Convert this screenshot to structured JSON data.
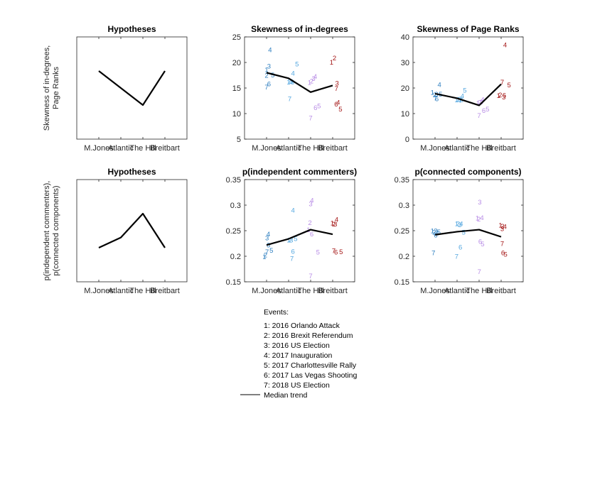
{
  "chart_data": [
    {
      "type": "line",
      "title": "Hypotheses",
      "ylabel": [
        "Skewness of in-degrees,",
        "Page Ranks"
      ],
      "categories": [
        "M.Jones",
        "Atlantic",
        "The Hill",
        "Breitbart"
      ],
      "ylim": [
        0,
        6
      ],
      "yticks": [],
      "median": [
        4,
        3,
        2,
        4
      ],
      "points": []
    },
    {
      "type": "scatter",
      "title": "Skewness of in-degrees",
      "ylabel": [],
      "categories": [
        "M.Jones",
        "Atlantic",
        "The Hill",
        "Breitbart"
      ],
      "ylim": [
        5,
        25
      ],
      "yticks": [
        "5",
        "10",
        "15",
        "20",
        "25"
      ],
      "median": [
        18.0,
        16.9,
        14.2,
        15.5
      ],
      "points": [
        {
          "cat": 1,
          "dx": 0.0,
          "y": 18.6,
          "label": "1"
        },
        {
          "cat": 1,
          "dx": 0.0,
          "y": 17.5,
          "label": "2"
        },
        {
          "cat": 1,
          "dx": 0.11,
          "y": 19.3,
          "label": "3"
        },
        {
          "cat": 1,
          "dx": 0.16,
          "y": 22.5,
          "label": "4"
        },
        {
          "cat": 1,
          "dx": 0.28,
          "y": 17.6,
          "label": "5"
        },
        {
          "cat": 1,
          "dx": 0.11,
          "y": 15.8,
          "label": "6"
        },
        {
          "cat": 1,
          "dx": 0.0,
          "y": 15.2,
          "label": "7"
        },
        {
          "cat": 2,
          "dx": 0.0,
          "y": 16.2,
          "label": "1"
        },
        {
          "cat": 2,
          "dx": 0.05,
          "y": 16.4,
          "label": "2"
        },
        {
          "cat": 2,
          "dx": 0.12,
          "y": 16.3,
          "label": "3"
        },
        {
          "cat": 2,
          "dx": 0.2,
          "y": 17.9,
          "label": "4"
        },
        {
          "cat": 2,
          "dx": 0.38,
          "y": 19.7,
          "label": "5"
        },
        {
          "cat": 2,
          "dx": 0.18,
          "y": 16.2,
          "label": "6"
        },
        {
          "cat": 2,
          "dx": 0.05,
          "y": 12.9,
          "label": "7"
        },
        {
          "cat": 3,
          "dx": -0.05,
          "y": 16.1,
          "label": "1"
        },
        {
          "cat": 3,
          "dx": 0.05,
          "y": 16.4,
          "label": "2"
        },
        {
          "cat": 3,
          "dx": 0.13,
          "y": 16.9,
          "label": "3"
        },
        {
          "cat": 3,
          "dx": 0.21,
          "y": 17.3,
          "label": "4"
        },
        {
          "cat": 3,
          "dx": 0.38,
          "y": 11.5,
          "label": "5"
        },
        {
          "cat": 3,
          "dx": 0.22,
          "y": 11.2,
          "label": "6"
        },
        {
          "cat": 3,
          "dx": 0.0,
          "y": 9.2,
          "label": "7"
        },
        {
          "cat": 4,
          "dx": -0.05,
          "y": 20.1,
          "label": "1"
        },
        {
          "cat": 4,
          "dx": 0.08,
          "y": 20.9,
          "label": "2"
        },
        {
          "cat": 4,
          "dx": 0.2,
          "y": 16.0,
          "label": "3"
        },
        {
          "cat": 4,
          "dx": 0.25,
          "y": 12.2,
          "label": "4"
        },
        {
          "cat": 4,
          "dx": 0.35,
          "y": 10.9,
          "label": "5"
        },
        {
          "cat": 4,
          "dx": 0.16,
          "y": 11.9,
          "label": "6"
        },
        {
          "cat": 4,
          "dx": 0.17,
          "y": 14.9,
          "label": "7"
        }
      ]
    },
    {
      "type": "scatter",
      "title": "Skewness of Page Ranks",
      "ylabel": [],
      "categories": [
        "M.Jones",
        "Atlantic",
        "The Hill",
        "Breitbart"
      ],
      "ylim": [
        0,
        40
      ],
      "yticks": [
        "0",
        "10",
        "20",
        "30",
        "40"
      ],
      "median": [
        17.8,
        16.0,
        13.2,
        21.5
      ],
      "points": [
        {
          "cat": 1,
          "dx": -0.12,
          "y": 18.4,
          "label": "1"
        },
        {
          "cat": 1,
          "dx": -0.02,
          "y": 17.4,
          "label": "2"
        },
        {
          "cat": 1,
          "dx": 0.06,
          "y": 17.6,
          "label": "3"
        },
        {
          "cat": 1,
          "dx": 0.2,
          "y": 21.4,
          "label": "4"
        },
        {
          "cat": 1,
          "dx": 0.25,
          "y": 17.7,
          "label": "5"
        },
        {
          "cat": 1,
          "dx": 0.08,
          "y": 15.9,
          "label": "6"
        },
        {
          "cat": 1,
          "dx": 0.02,
          "y": 16.1,
          "label": "7"
        },
        {
          "cat": 2,
          "dx": -0.03,
          "y": 15.4,
          "label": "1"
        },
        {
          "cat": 2,
          "dx": 0.05,
          "y": 15.6,
          "label": "2"
        },
        {
          "cat": 2,
          "dx": 0.12,
          "y": 15.7,
          "label": "3"
        },
        {
          "cat": 2,
          "dx": 0.24,
          "y": 16.9,
          "label": "4"
        },
        {
          "cat": 2,
          "dx": 0.35,
          "y": 19.1,
          "label": "5"
        },
        {
          "cat": 2,
          "dx": 0.2,
          "y": 15.4,
          "label": "6"
        },
        {
          "cat": 2,
          "dx": 0.15,
          "y": 15.2,
          "label": "7"
        },
        {
          "cat": 3,
          "dx": -0.05,
          "y": 14.2,
          "label": "1"
        },
        {
          "cat": 3,
          "dx": 0.03,
          "y": 14.4,
          "label": "2"
        },
        {
          "cat": 3,
          "dx": 0.1,
          "y": 14.6,
          "label": "3"
        },
        {
          "cat": 3,
          "dx": 0.16,
          "y": 15.6,
          "label": "4"
        },
        {
          "cat": 3,
          "dx": 0.38,
          "y": 11.8,
          "label": "5"
        },
        {
          "cat": 3,
          "dx": 0.21,
          "y": 11.2,
          "label": "6"
        },
        {
          "cat": 3,
          "dx": 0.0,
          "y": 9.3,
          "label": "7"
        },
        {
          "cat": 4,
          "dx": -0.12,
          "y": 17.1,
          "label": "1"
        },
        {
          "cat": 4,
          "dx": -0.04,
          "y": 17.3,
          "label": "2"
        },
        {
          "cat": 4,
          "dx": 0.12,
          "y": 16.5,
          "label": "3"
        },
        {
          "cat": 4,
          "dx": 0.18,
          "y": 36.9,
          "label": "4"
        },
        {
          "cat": 4,
          "dx": 0.36,
          "y": 21.3,
          "label": "5"
        },
        {
          "cat": 4,
          "dx": 0.14,
          "y": 17.2,
          "label": "6"
        },
        {
          "cat": 4,
          "dx": 0.05,
          "y": 22.4,
          "label": "7"
        }
      ]
    },
    {
      "type": "line",
      "title": "Hypotheses",
      "ylabel": [
        "p(independent commenters),",
        "p(connected components)"
      ],
      "categories": [
        "M.Jones",
        "Atlantic",
        "The Hill",
        "Breitbart"
      ],
      "ylim": [
        0,
        6
      ],
      "yticks": [],
      "median": [
        2,
        2.6,
        4,
        2
      ],
      "points": []
    },
    {
      "type": "scatter",
      "title": "p(independent commenters)",
      "ylabel": [],
      "categories": [
        "M.Jones",
        "Atlantic",
        "The Hill",
        "Breitbart"
      ],
      "ylim": [
        0.15,
        0.35
      ],
      "yticks": [
        "0.15",
        "0.2",
        "0.25",
        "0.3",
        "0.35"
      ],
      "median": [
        0.222,
        0.234,
        0.252,
        0.243
      ],
      "points": [
        {
          "cat": 1,
          "dx": -0.1,
          "y": 0.199,
          "label": "1"
        },
        {
          "cat": 1,
          "dx": -0.05,
          "y": 0.203,
          "label": "2"
        },
        {
          "cat": 1,
          "dx": 0.02,
          "y": 0.236,
          "label": "3"
        },
        {
          "cat": 1,
          "dx": 0.08,
          "y": 0.244,
          "label": "4"
        },
        {
          "cat": 1,
          "dx": 0.22,
          "y": 0.212,
          "label": "5"
        },
        {
          "cat": 1,
          "dx": 0.08,
          "y": 0.222,
          "label": "6"
        },
        {
          "cat": 1,
          "dx": 0.02,
          "y": 0.209,
          "label": "7"
        },
        {
          "cat": 2,
          "dx": 0.0,
          "y": 0.232,
          "label": "1"
        },
        {
          "cat": 2,
          "dx": 0.06,
          "y": 0.232,
          "label": "2"
        },
        {
          "cat": 2,
          "dx": 0.12,
          "y": 0.232,
          "label": "3"
        },
        {
          "cat": 2,
          "dx": 0.2,
          "y": 0.29,
          "label": "4"
        },
        {
          "cat": 2,
          "dx": 0.32,
          "y": 0.235,
          "label": "5"
        },
        {
          "cat": 2,
          "dx": 0.2,
          "y": 0.21,
          "label": "6"
        },
        {
          "cat": 2,
          "dx": 0.15,
          "y": 0.196,
          "label": "7"
        },
        {
          "cat": 3,
          "dx": -0.1,
          "y": 0.252,
          "label": "1"
        },
        {
          "cat": 3,
          "dx": -0.03,
          "y": 0.266,
          "label": "2"
        },
        {
          "cat": 3,
          "dx": 0.0,
          "y": 0.303,
          "label": "3"
        },
        {
          "cat": 3,
          "dx": 0.06,
          "y": 0.31,
          "label": "4"
        },
        {
          "cat": 3,
          "dx": 0.33,
          "y": 0.208,
          "label": "5"
        },
        {
          "cat": 3,
          "dx": 0.05,
          "y": 0.244,
          "label": "6"
        },
        {
          "cat": 3,
          "dx": 0.0,
          "y": 0.162,
          "label": "7"
        },
        {
          "cat": 4,
          "dx": -0.02,
          "y": 0.265,
          "label": "1"
        },
        {
          "cat": 4,
          "dx": 0.05,
          "y": 0.263,
          "label": "2"
        },
        {
          "cat": 4,
          "dx": 0.12,
          "y": 0.263,
          "label": "3"
        },
        {
          "cat": 4,
          "dx": 0.18,
          "y": 0.272,
          "label": "4"
        },
        {
          "cat": 4,
          "dx": 0.38,
          "y": 0.209,
          "label": "5"
        },
        {
          "cat": 4,
          "dx": 0.15,
          "y": 0.208,
          "label": "6"
        },
        {
          "cat": 4,
          "dx": 0.05,
          "y": 0.211,
          "label": "7"
        }
      ]
    },
    {
      "type": "scatter",
      "title": "p(connected components)",
      "ylabel": [],
      "categories": [
        "M.Jones",
        "Atlantic",
        "The Hill",
        "Breitbart"
      ],
      "ylim": [
        0.15,
        0.35
      ],
      "yticks": [
        "0.15",
        "0.2",
        "0.25",
        "0.3",
        "0.35"
      ],
      "median": [
        0.242,
        0.248,
        0.252,
        0.238
      ],
      "points": [
        {
          "cat": 1,
          "dx": -0.12,
          "y": 0.25,
          "label": "1"
        },
        {
          "cat": 1,
          "dx": -0.04,
          "y": 0.247,
          "label": "2"
        },
        {
          "cat": 1,
          "dx": 0.03,
          "y": 0.25,
          "label": "3"
        },
        {
          "cat": 1,
          "dx": 0.1,
          "y": 0.246,
          "label": "4"
        },
        {
          "cat": 1,
          "dx": 0.17,
          "y": 0.248,
          "label": "5"
        },
        {
          "cat": 1,
          "dx": 0.03,
          "y": 0.242,
          "label": "6"
        },
        {
          "cat": 1,
          "dx": -0.07,
          "y": 0.207,
          "label": "7"
        },
        {
          "cat": 2,
          "dx": -0.02,
          "y": 0.264,
          "label": "1"
        },
        {
          "cat": 2,
          "dx": 0.05,
          "y": 0.264,
          "label": "2"
        },
        {
          "cat": 2,
          "dx": 0.12,
          "y": 0.262,
          "label": "3"
        },
        {
          "cat": 2,
          "dx": 0.19,
          "y": 0.264,
          "label": "4"
        },
        {
          "cat": 2,
          "dx": 0.3,
          "y": 0.247,
          "label": "5"
        },
        {
          "cat": 2,
          "dx": 0.15,
          "y": 0.218,
          "label": "6"
        },
        {
          "cat": 2,
          "dx": -0.02,
          "y": 0.2,
          "label": "7"
        },
        {
          "cat": 3,
          "dx": -0.08,
          "y": 0.275,
          "label": "1"
        },
        {
          "cat": 3,
          "dx": -0.01,
          "y": 0.273,
          "label": "2"
        },
        {
          "cat": 3,
          "dx": 0.03,
          "y": 0.306,
          "label": "3"
        },
        {
          "cat": 3,
          "dx": 0.13,
          "y": 0.276,
          "label": "4"
        },
        {
          "cat": 3,
          "dx": 0.16,
          "y": 0.224,
          "label": "5"
        },
        {
          "cat": 3,
          "dx": 0.05,
          "y": 0.229,
          "label": "6"
        },
        {
          "cat": 3,
          "dx": 0.01,
          "y": 0.17,
          "label": "7"
        },
        {
          "cat": 4,
          "dx": -0.03,
          "y": 0.261,
          "label": "1"
        },
        {
          "cat": 4,
          "dx": 0.06,
          "y": 0.259,
          "label": "2"
        },
        {
          "cat": 4,
          "dx": 0.05,
          "y": 0.254,
          "label": "3"
        },
        {
          "cat": 4,
          "dx": 0.17,
          "y": 0.258,
          "label": "4"
        },
        {
          "cat": 4,
          "dx": 0.2,
          "y": 0.204,
          "label": "5"
        },
        {
          "cat": 4,
          "dx": 0.08,
          "y": 0.207,
          "label": "6"
        },
        {
          "cat": 4,
          "dx": 0.05,
          "y": 0.225,
          "label": "7"
        }
      ]
    }
  ],
  "colors": {
    "M.Jones": "#2e7fc0",
    "Atlantic": "#56a8e0",
    "The Hill": "#b98ee6",
    "Breitbart": "#a51818",
    "median": "#000000",
    "axis": "#262626"
  },
  "legend": {
    "title": "Events:",
    "items": [
      "1: 2016 Orlando Attack",
      "2: 2016 Brexit Referendum",
      "3: 2016 US Election",
      "4: 2017 Inauguration",
      "5: 2017 Charlottesville Rally",
      "6: 2017 Las Vegas Shooting",
      "7: 2018 US Election"
    ],
    "median_label": "Median trend"
  }
}
